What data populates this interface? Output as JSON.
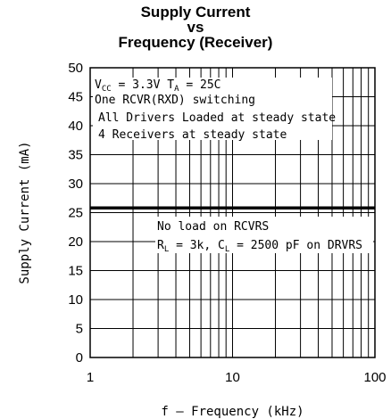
{
  "chart_data": {
    "type": "line",
    "title_lines": [
      "Supply Current",
      "vs",
      "Frequency (Receiver)"
    ],
    "xlabel": "f – Frequency (kHz)",
    "ylabel": "Supply Current (mA)",
    "x_scale": "log",
    "xlim": [
      1,
      100
    ],
    "ylim": [
      0,
      50
    ],
    "x_ticks": [
      1,
      10,
      100
    ],
    "x_tick_labels": [
      "1",
      "10",
      "100"
    ],
    "y_ticks": [
      0,
      5,
      10,
      15,
      20,
      25,
      30,
      35,
      40,
      45,
      50
    ],
    "y_tick_labels": [
      "0",
      "5",
      "10",
      "15",
      "20",
      "25",
      "30",
      "35",
      "40",
      "45",
      "50"
    ],
    "grid": true,
    "series": [
      {
        "x": [
          1,
          100
        ],
        "y": [
          25.8,
          25.8
        ]
      }
    ],
    "annotations": {
      "conditions": {
        "vcc_main": "V",
        "vcc_sub": "CC",
        "vcc_rest": " = 3.3V  T",
        "ta_sub": "A",
        "ta_rest": " = 25C",
        "line2": "One RCVR(RXD) switching",
        "line3": "All Drivers Loaded at steady state",
        "line4": "4 Receivers at steady state"
      },
      "load": {
        "line1": "No load on RCVRS",
        "rl_main": "R",
        "rl_sub": "L",
        "rl_rest": " = 3k, C",
        "cl_sub": "L",
        "cl_rest": " = 2500 pF on DRVRS"
      }
    }
  }
}
